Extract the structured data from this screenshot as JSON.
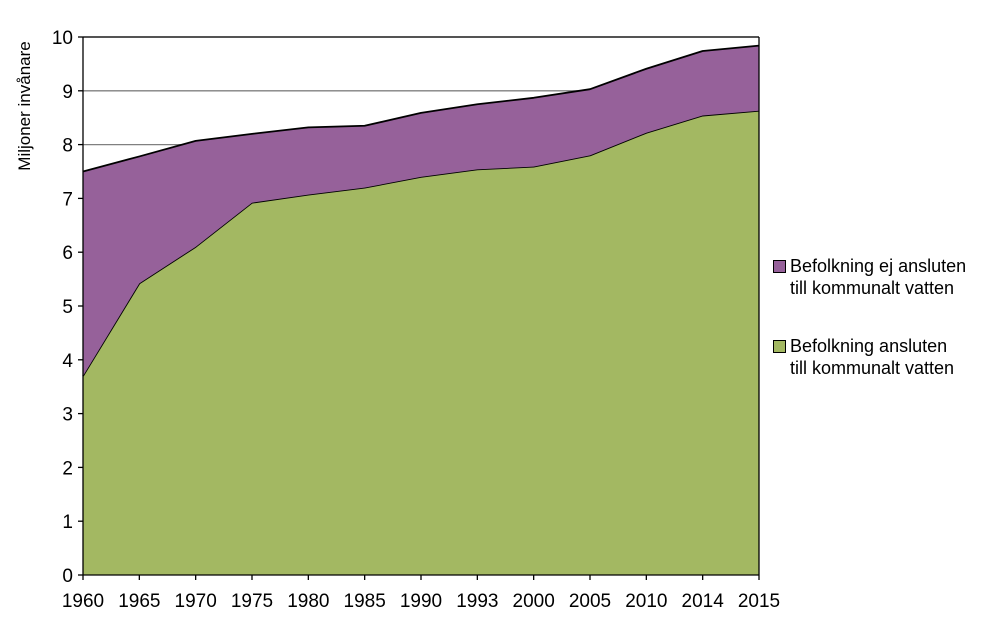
{
  "chart_data": {
    "type": "area",
    "stacked": true,
    "ylabel": "Miljoner invånare",
    "xlabel": "",
    "ylim": [
      0,
      10
    ],
    "yticks": [
      "0",
      "1",
      "2",
      "3",
      "4",
      "5",
      "6",
      "7",
      "8",
      "9",
      "10"
    ],
    "categories": [
      "1960",
      "1965",
      "1970",
      "1975",
      "1980",
      "1985",
      "1990",
      "1993",
      "2000",
      "2005",
      "2010",
      "2014",
      "2015"
    ],
    "grid": "horizontal major lines",
    "legend_position": "right",
    "series": [
      {
        "name": "Befolkning ansluten\ntill kommunalt vatten",
        "color": "#a3b862",
        "values": [
          3.7,
          5.42,
          6.1,
          6.92,
          7.07,
          7.2,
          7.4,
          7.54,
          7.59,
          7.8,
          8.22,
          8.54,
          8.63
        ]
      },
      {
        "name": "Befolkning ej ansluten\ntill kommunalt vatten",
        "color": "#96619a",
        "values": [
          3.8,
          2.36,
          1.97,
          1.28,
          1.25,
          1.15,
          1.19,
          1.21,
          1.28,
          1.23,
          1.19,
          1.2,
          1.21
        ]
      }
    ]
  }
}
